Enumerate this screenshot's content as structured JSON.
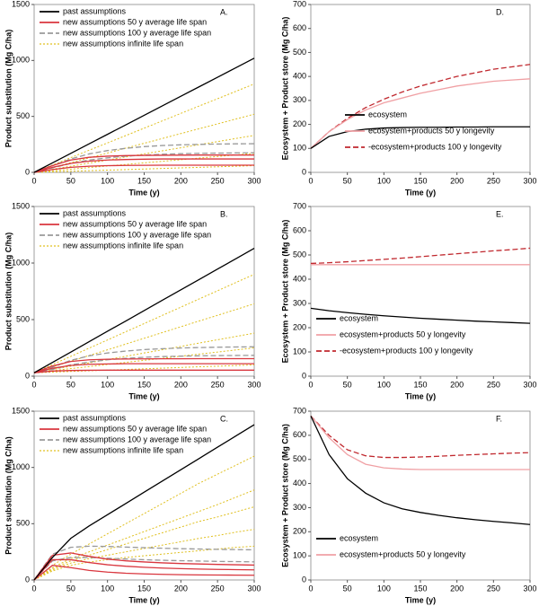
{
  "chart_data": [
    {
      "type": "line",
      "panel": "A.",
      "xlabel": "Time (y)",
      "ylabel": "Product substitution (Mg C/ha)",
      "legend": "upper left",
      "x": [
        0,
        25,
        50,
        75,
        100,
        125,
        150,
        175,
        200,
        225,
        250,
        275,
        300
      ],
      "xlim": [
        0,
        300
      ],
      "xticks": [
        0,
        50,
        100,
        150,
        200,
        250,
        300
      ],
      "ylim": [
        0,
        1500
      ],
      "yticks": [
        0,
        500,
        1000,
        1500
      ],
      "series": [
        {
          "name": "past assumptions",
          "color": "#000000",
          "style": "solid",
          "lines": [
            [
              0,
              85,
              170,
              255,
              340,
              425,
              510,
              595,
              680,
              765,
              850,
              935,
              1020
            ]
          ]
        },
        {
          "name": "new assumptions 50 y average life span",
          "color": "#d9363e",
          "style": "solid",
          "lines": [
            [
              0,
              60,
              110,
              135,
              145,
              150,
              152,
              153,
              154,
              155,
              155,
              155,
              155
            ],
            [
              0,
              45,
              80,
              100,
              110,
              115,
              118,
              120,
              120,
              120,
              120,
              120,
              120
            ],
            [
              0,
              25,
              45,
              55,
              60,
              62,
              63,
              64,
              64,
              64,
              64,
              64,
              64
            ]
          ]
        },
        {
          "name": "new assumptions 100 y average life span",
          "color": "#999999",
          "style": "dashed",
          "lines": [
            [
              0,
              60,
              120,
              165,
              195,
              215,
              230,
              240,
              246,
              250,
              253,
              255,
              256
            ],
            [
              0,
              40,
              80,
              110,
              130,
              145,
              155,
              162,
              167,
              170,
              172,
              174,
              175
            ]
          ]
        },
        {
          "name": "new assumptions infinite life span",
          "color": "#e0c020",
          "style": "dotted",
          "lines": [
            [
              0,
              66,
              132,
              198,
              263,
              329,
              395,
              461,
              527,
              593,
              658,
              724,
              790
            ],
            [
              0,
              43,
              87,
              130,
              173,
              217,
              260,
              303,
              347,
              390,
              433,
              477,
              520
            ],
            [
              0,
              28,
              55,
              83,
              110,
              138,
              165,
              193,
              220,
              248,
              275,
              303,
              330
            ],
            [
              0,
              14,
              28,
              43,
              57,
              71,
              85,
              99,
              113,
              128,
              142,
              156,
              170
            ],
            [
              0,
              5,
              10,
              15,
              20,
              25,
              30,
              35,
              40,
              45,
              50,
              55,
              60
            ]
          ]
        }
      ]
    },
    {
      "type": "line",
      "panel": "B.",
      "xlabel": "Time (y)",
      "ylabel": "Product substitution (Mg C/ha)",
      "legend": "upper left",
      "x": [
        0,
        25,
        50,
        75,
        100,
        125,
        150,
        175,
        200,
        225,
        250,
        275,
        300
      ],
      "xlim": [
        0,
        300
      ],
      "xticks": [
        0,
        50,
        100,
        150,
        200,
        250,
        300
      ],
      "ylim": [
        0,
        1500
      ],
      "yticks": [
        0,
        500,
        1000,
        1500
      ],
      "series": [
        {
          "name": "past assumptions",
          "color": "#000000",
          "style": "solid",
          "lines": [
            [
              30,
              122,
              213,
              305,
              397,
              488,
              580,
              672,
              763,
              855,
              947,
              1038,
              1130
            ]
          ]
        },
        {
          "name": "new assumptions 50 y average life span",
          "color": "#d9363e",
          "style": "solid",
          "lines": [
            [
              30,
              90,
              130,
              145,
              150,
              152,
              153,
              154,
              154,
              155,
              155,
              155,
              155
            ],
            [
              30,
              70,
              95,
              105,
              108,
              110,
              110,
              110,
              110,
              110,
              110,
              110,
              110
            ],
            [
              30,
              45,
              50,
              52,
              53,
              53,
              53,
              53,
              53,
              53,
              53,
              53,
              53
            ]
          ]
        },
        {
          "name": "new assumptions 100 y average life span",
          "color": "#999999",
          "style": "dashed",
          "lines": [
            [
              30,
              80,
              140,
              180,
              205,
              222,
              235,
              243,
              249,
              253,
              256,
              258,
              260
            ],
            [
              30,
              60,
              100,
              125,
              145,
              158,
              167,
              173,
              177,
              180,
              182,
              183,
              184
            ]
          ]
        },
        {
          "name": "new assumptions infinite life span",
          "color": "#e0c020",
          "style": "dotted",
          "lines": [
            [
              30,
              103,
              175,
              248,
              320,
              393,
              465,
              538,
              610,
              683,
              755,
              828,
              900
            ],
            [
              30,
              81,
              132,
              183,
              233,
              284,
              335,
              386,
              437,
              488,
              538,
              589,
              640
            ],
            [
              30,
              59,
              88,
              118,
              147,
              176,
              205,
              234,
              263,
              293,
              322,
              351,
              380
            ],
            [
              30,
              48,
              67,
              85,
              103,
              122,
              140,
              158,
              177,
              195,
              213,
              232,
              250
            ],
            [
              30,
              36,
              42,
              48,
              53,
              59,
              65,
              71,
              77,
              83,
              88,
              94,
              100
            ]
          ]
        }
      ]
    },
    {
      "type": "line",
      "panel": "C.",
      "xlabel": "Time (y)",
      "ylabel": "Product substitution (Mg C/ha)",
      "legend": "upper left",
      "x": [
        0,
        25,
        50,
        75,
        100,
        125,
        150,
        175,
        200,
        225,
        250,
        275,
        300
      ],
      "xlim": [
        0,
        300
      ],
      "xticks": [
        0,
        50,
        100,
        150,
        200,
        250,
        300
      ],
      "ylim": [
        0,
        1500
      ],
      "yticks": [
        0,
        500,
        1000,
        1500
      ],
      "series": [
        {
          "name": "past assumptions",
          "color": "#000000",
          "style": "solid",
          "lines": [
            [
              0,
              200,
              370,
              480,
              580,
              680,
              780,
              880,
              980,
              1080,
              1180,
              1280,
              1380
            ]
          ]
        },
        {
          "name": "new assumptions 50 y average life span",
          "color": "#d9363e",
          "style": "solid",
          "lines": [
            [
              0,
              220,
              240,
              210,
              185,
              170,
              160,
              152,
              146,
              142,
              138,
              135,
              132
            ],
            [
              0,
              180,
              180,
              155,
              135,
              122,
              113,
              106,
              101,
              97,
              94,
              92,
              90
            ],
            [
              0,
              130,
              110,
              85,
              70,
              60,
              54,
              50,
              47,
              45,
              44,
              43,
              42
            ]
          ]
        },
        {
          "name": "new assumptions 100 y average life span",
          "color": "#999999",
          "style": "dashed",
          "lines": [
            [
              0,
              230,
              290,
              300,
              298,
              292,
              287,
              282,
              278,
              275,
              272,
              270,
              268
            ],
            [
              0,
              170,
              200,
              200,
              193,
              186,
              180,
              175,
              171,
              168,
              165,
              163,
              161
            ]
          ]
        },
        {
          "name": "new assumptions infinite life span",
          "color": "#e0c020",
          "style": "dotted",
          "lines": [
            [
              0,
              130,
              230,
              320,
              410,
              500,
              590,
              680,
              770,
              860,
              940,
              1020,
              1100
            ],
            [
              0,
              110,
              190,
              250,
              310,
              370,
              430,
              490,
              550,
              610,
              670,
              735,
              800
            ],
            [
              0,
              100,
              170,
              220,
              270,
              320,
              370,
              420,
              470,
              520,
              560,
              605,
              650
            ],
            [
              0,
              90,
              150,
              190,
              220,
              250,
              280,
              310,
              340,
              370,
              395,
              425,
              450
            ],
            [
              0,
              80,
              130,
              160,
              180,
              200,
              215,
              230,
              245,
              260,
              275,
              290,
              300
            ]
          ]
        }
      ]
    },
    {
      "type": "line",
      "panel": "D.",
      "xlabel": "Time (y)",
      "ylabel": "Ecosystem + Product store (Mg C/ha)",
      "legend": "lower right",
      "x": [
        0,
        25,
        50,
        75,
        100,
        125,
        150,
        175,
        200,
        225,
        250,
        275,
        300
      ],
      "xlim": [
        0,
        300
      ],
      "xticks": [
        0,
        50,
        100,
        150,
        200,
        250,
        300
      ],
      "ylim": [
        0,
        700
      ],
      "yticks": [
        0,
        100,
        200,
        300,
        400,
        500,
        600,
        700
      ],
      "series": [
        {
          "name": "ecosystem",
          "color": "#000000",
          "style": "solid",
          "lines": [
            [
              100,
              150,
              170,
              180,
              185,
              187,
              188,
              188,
              189,
              189,
              190,
              190,
              190
            ]
          ]
        },
        {
          "name": "ecosystem+products 50 y longevity",
          "color": "#f0a0a4",
          "style": "solid",
          "lines": [
            [
              100,
              170,
              220,
              260,
              290,
              310,
              330,
              345,
              360,
              370,
              380,
              385,
              390
            ]
          ]
        },
        {
          "name": "-ecosystem+products 100 y longevity",
          "color": "#c0282e",
          "style": "dashed",
          "lines": [
            [
              100,
              170,
              225,
              270,
              305,
              335,
              360,
              380,
              400,
              415,
              430,
              440,
              450
            ]
          ]
        }
      ]
    },
    {
      "type": "line",
      "panel": "E.",
      "xlabel": "Time (y)",
      "ylabel": "Ecosystem + Product store (Mg C/ha)",
      "legend": "lower left",
      "x": [
        0,
        25,
        50,
        75,
        100,
        125,
        150,
        175,
        200,
        225,
        250,
        275,
        300
      ],
      "xlim": [
        0,
        300
      ],
      "xticks": [
        0,
        50,
        100,
        150,
        200,
        250,
        300
      ],
      "ylim": [
        0,
        700
      ],
      "yticks": [
        0,
        100,
        200,
        300,
        400,
        500,
        600,
        700
      ],
      "series": [
        {
          "name": "ecosystem",
          "color": "#000000",
          "style": "solid",
          "lines": [
            [
              280,
              270,
              262,
              255,
              249,
              244,
              239,
              235,
              231,
              227,
              224,
              221,
              218
            ]
          ]
        },
        {
          "name": "ecosystem+products 50 y longevity",
          "color": "#f0a0a4",
          "style": "solid",
          "lines": [
            [
              460,
              460,
              460,
              460,
              460,
              460,
              460,
              460,
              460,
              460,
              460,
              460,
              460
            ]
          ]
        },
        {
          "name": "-ecosystem+products 100 y longevity",
          "color": "#c0282e",
          "style": "dashed",
          "lines": [
            [
              465,
              468,
              472,
              477,
              482,
              487,
              493,
              499,
              505,
              511,
              517,
              522,
              528
            ]
          ]
        }
      ]
    },
    {
      "type": "line",
      "panel": "F.",
      "xlabel": "Time (y)",
      "ylabel": "Ecosystem + Product store (Mg C/ha)",
      "legend": "lower left",
      "x": [
        0,
        25,
        50,
        75,
        100,
        125,
        150,
        175,
        200,
        225,
        250,
        275,
        300
      ],
      "xlim": [
        0,
        300
      ],
      "xticks": [
        0,
        50,
        100,
        150,
        200,
        250,
        300
      ],
      "ylim": [
        0,
        700
      ],
      "yticks": [
        0,
        100,
        200,
        300,
        400,
        500,
        600,
        700
      ],
      "series": [
        {
          "name": "ecosystem",
          "color": "#000000",
          "style": "solid",
          "lines": [
            [
              680,
              520,
              420,
              360,
              320,
              295,
              280,
              268,
              258,
              250,
              243,
              237,
              230
            ]
          ]
        },
        {
          "name": "ecosystem+products 50 y longevity",
          "color": "#f0a0a4",
          "style": "solid",
          "lines": [
            [
              680,
              590,
              520,
              480,
              465,
              460,
              458,
              458,
              458,
              458,
              458,
              458,
              458
            ]
          ]
        },
        {
          "color": "#c0282e",
          "style": "dashed",
          "lines": [
            [
              680,
              600,
              540,
              515,
              508,
              508,
              510,
              513,
              517,
              520,
              523,
              526,
              528
            ]
          ]
        }
      ]
    }
  ]
}
